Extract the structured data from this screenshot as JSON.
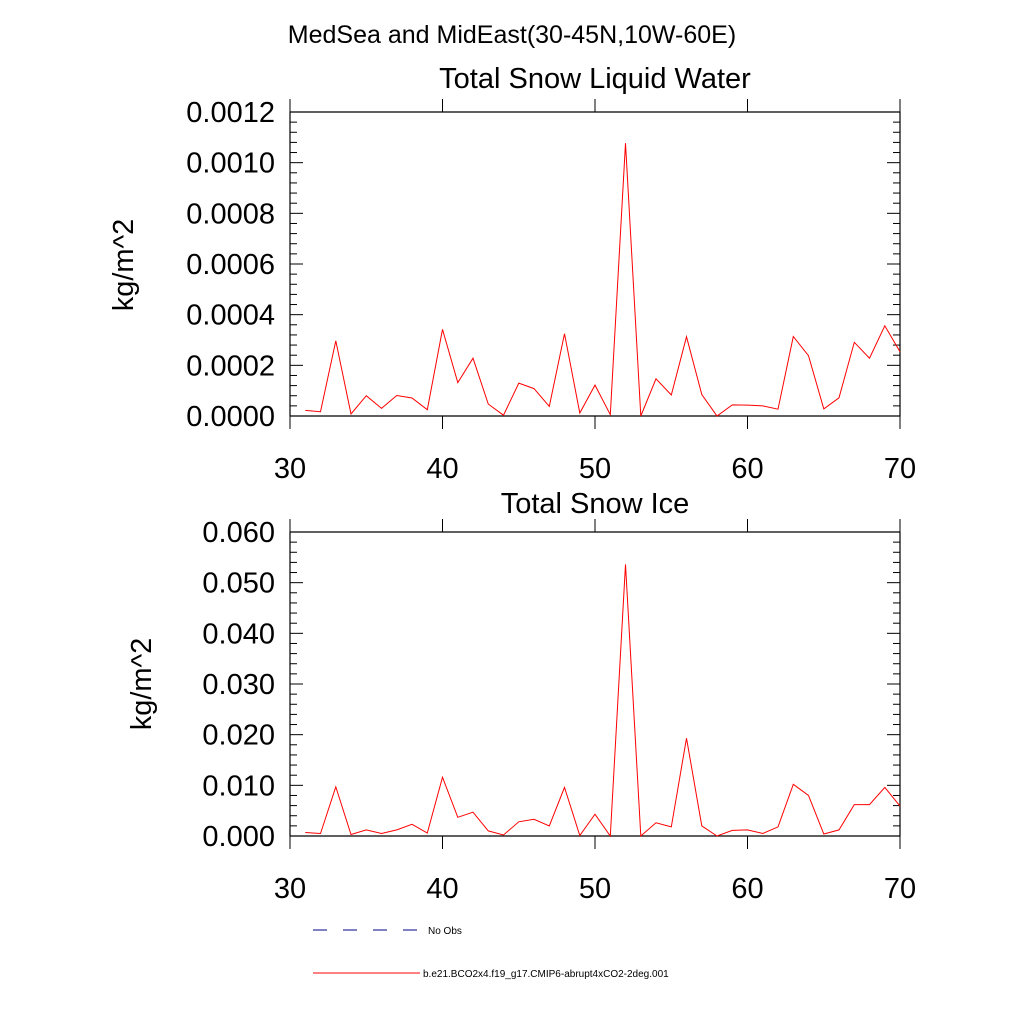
{
  "suptitle": "MedSea and MidEast(30-45N,10W-60E)",
  "colors": {
    "model": "#ff0000",
    "obs": "#00008b",
    "axis": "#000000"
  },
  "chart_data": [
    {
      "type": "line",
      "title": "Total Snow Liquid Water",
      "xlabel": "",
      "ylabel": "kg/m^2",
      "xlim": [
        30,
        70
      ],
      "ylim": [
        0,
        0.0012
      ],
      "xticks": [
        30,
        40,
        50,
        60,
        70
      ],
      "xtick_labels": [
        "30",
        "40",
        "50",
        "60",
        "70"
      ],
      "yticks": [
        0,
        0.0002,
        0.0004,
        0.0006,
        0.0008,
        0.001,
        0.0012
      ],
      "ytick_labels": [
        "0.0000",
        "0.0002",
        "0.0004",
        "0.0006",
        "0.0008",
        "0.0010",
        "0.0012"
      ],
      "x": [
        31,
        32,
        33,
        34,
        35,
        36,
        37,
        38,
        39,
        40,
        41,
        42,
        43,
        44,
        45,
        46,
        47,
        48,
        49,
        50,
        51,
        52,
        53,
        54,
        55,
        56,
        57,
        58,
        59,
        60,
        61,
        62,
        63,
        64,
        65,
        66,
        67,
        68,
        69,
        70
      ],
      "series": [
        {
          "name": "b.e21.BCO2x4.f19_g17.CMIP6-abrupt4xCO2-2deg.001",
          "values": [
            2.2e-05,
            1.7e-05,
            0.000297,
            8e-06,
            8e-05,
            3e-05,
            8.1e-05,
            7.1e-05,
            2.5e-05,
            0.000342,
            0.000132,
            0.000228,
            4.7e-05,
            3e-06,
            0.00013,
            0.000108,
            3.8e-05,
            0.000325,
            1.2e-05,
            0.000122,
            5e-06,
            0.001077,
            0.0,
            0.000147,
            8.3e-05,
            0.000313,
            8.5e-05,
            0.0,
            4.4e-05,
            4.3e-05,
            4e-05,
            2.7e-05,
            0.000314,
            0.000238,
            2.8e-05,
            7.2e-05,
            0.000291,
            0.000228,
            0.000356,
            0.000254
          ]
        }
      ]
    },
    {
      "type": "line",
      "title": "Total Snow Ice",
      "xlabel": "",
      "ylabel": "kg/m^2",
      "xlim": [
        30,
        70
      ],
      "ylim": [
        0,
        0.06
      ],
      "xticks": [
        30,
        40,
        50,
        60,
        70
      ],
      "xtick_labels": [
        "30",
        "40",
        "50",
        "60",
        "70"
      ],
      "yticks": [
        0,
        0.01,
        0.02,
        0.03,
        0.04,
        0.05,
        0.06
      ],
      "ytick_labels": [
        "0.000",
        "0.010",
        "0.020",
        "0.030",
        "0.040",
        "0.050",
        "0.060"
      ],
      "x": [
        31,
        32,
        33,
        34,
        35,
        36,
        37,
        38,
        39,
        40,
        41,
        42,
        43,
        44,
        45,
        46,
        47,
        48,
        49,
        50,
        51,
        52,
        53,
        54,
        55,
        56,
        57,
        58,
        59,
        60,
        61,
        62,
        63,
        64,
        65,
        66,
        67,
        68,
        69,
        70
      ],
      "series": [
        {
          "name": "b.e21.BCO2x4.f19_g17.CMIP6-abrupt4xCO2-2deg.001",
          "values": [
            0.0007,
            0.0005,
            0.0097,
            0.0003,
            0.0012,
            0.0005,
            0.0012,
            0.0023,
            0.0006,
            0.0116,
            0.0037,
            0.0047,
            0.001,
            0.0002,
            0.0028,
            0.0033,
            0.002,
            0.0096,
            0.0001,
            0.0043,
            0.0,
            0.0536,
            0.0,
            0.0026,
            0.0018,
            0.0193,
            0.002,
            0.0,
            0.0011,
            0.0012,
            0.0005,
            0.0018,
            0.0102,
            0.008,
            0.0004,
            0.0012,
            0.0062,
            0.0062,
            0.0096,
            0.0059
          ]
        }
      ]
    }
  ],
  "legend": [
    {
      "label": "No Obs",
      "style": "dashed",
      "color": "#00008b"
    },
    {
      "label": "b.e21.BCO2x4.f19_g17.CMIP6-abrupt4xCO2-2deg.001",
      "style": "solid",
      "color": "#ff0000"
    }
  ]
}
